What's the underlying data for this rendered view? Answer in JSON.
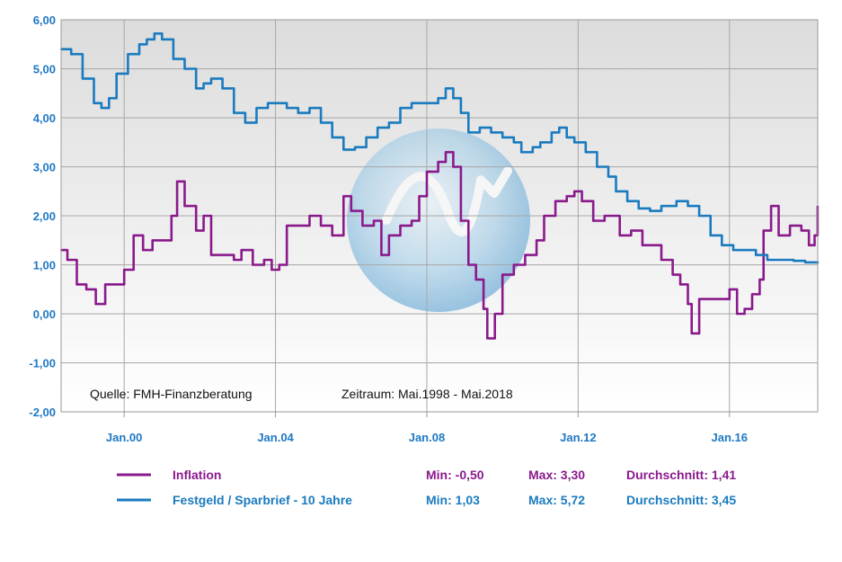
{
  "chart_data": {
    "type": "line",
    "title": "",
    "xlabel": "",
    "ylabel": "",
    "x_range": [
      "1998-05",
      "2018-05"
    ],
    "ylim": [
      -2.0,
      6.0
    ],
    "grid": true,
    "y_ticks": [
      "-2,00",
      "-1,00",
      "0,00",
      "1,00",
      "2,00",
      "3,00",
      "4,00",
      "5,00",
      "6,00"
    ],
    "x_ticks": [
      "Jan.00",
      "Jan.04",
      "Jan.08",
      "Jan.12",
      "Jan.16"
    ],
    "source_note": "Quelle: FMH-Finanzberatung",
    "period_note": "Zeitraum: Mai.1998 - Mai.2018",
    "series": [
      {
        "name": "Inflation",
        "color": "#8a1a8c",
        "min_label": "Min: -0,50",
        "max_label": "Max: 3,30",
        "avg_label": "Durchschnitt: 1,41",
        "points": [
          [
            1998.33,
            1.3
          ],
          [
            1998.5,
            1.1
          ],
          [
            1998.75,
            0.6
          ],
          [
            1999.0,
            0.5
          ],
          [
            1999.25,
            0.2
          ],
          [
            1999.5,
            0.6
          ],
          [
            1999.75,
            0.6
          ],
          [
            2000.0,
            0.9
          ],
          [
            2000.25,
            1.6
          ],
          [
            2000.5,
            1.3
          ],
          [
            2000.75,
            1.5
          ],
          [
            2001.0,
            1.5
          ],
          [
            2001.25,
            2.0
          ],
          [
            2001.4,
            2.7
          ],
          [
            2001.6,
            2.2
          ],
          [
            2001.9,
            1.7
          ],
          [
            2002.1,
            2.0
          ],
          [
            2002.3,
            1.2
          ],
          [
            2002.6,
            1.2
          ],
          [
            2002.9,
            1.1
          ],
          [
            2003.1,
            1.3
          ],
          [
            2003.4,
            1.0
          ],
          [
            2003.7,
            1.1
          ],
          [
            2003.9,
            0.9
          ],
          [
            2004.1,
            1.0
          ],
          [
            2004.3,
            1.8
          ],
          [
            2004.6,
            1.8
          ],
          [
            2004.9,
            2.0
          ],
          [
            2005.2,
            1.8
          ],
          [
            2005.5,
            1.6
          ],
          [
            2005.8,
            2.4
          ],
          [
            2006.0,
            2.1
          ],
          [
            2006.3,
            1.8
          ],
          [
            2006.6,
            1.9
          ],
          [
            2006.8,
            1.2
          ],
          [
            2007.0,
            1.6
          ],
          [
            2007.3,
            1.8
          ],
          [
            2007.6,
            1.9
          ],
          [
            2007.8,
            2.4
          ],
          [
            2008.0,
            2.9
          ],
          [
            2008.3,
            3.1
          ],
          [
            2008.5,
            3.3
          ],
          [
            2008.7,
            3.0
          ],
          [
            2008.9,
            1.9
          ],
          [
            2009.1,
            1.0
          ],
          [
            2009.3,
            0.7
          ],
          [
            2009.5,
            0.1
          ],
          [
            2009.6,
            -0.5
          ],
          [
            2009.8,
            0.0
          ],
          [
            2010.0,
            0.8
          ],
          [
            2010.3,
            1.0
          ],
          [
            2010.6,
            1.2
          ],
          [
            2010.9,
            1.5
          ],
          [
            2011.1,
            2.0
          ],
          [
            2011.4,
            2.3
          ],
          [
            2011.7,
            2.4
          ],
          [
            2011.9,
            2.5
          ],
          [
            2012.1,
            2.3
          ],
          [
            2012.4,
            1.9
          ],
          [
            2012.7,
            2.0
          ],
          [
            2012.9,
            2.0
          ],
          [
            2013.1,
            1.6
          ],
          [
            2013.4,
            1.7
          ],
          [
            2013.7,
            1.4
          ],
          [
            2013.9,
            1.4
          ],
          [
            2014.2,
            1.1
          ],
          [
            2014.5,
            0.8
          ],
          [
            2014.7,
            0.6
          ],
          [
            2014.9,
            0.2
          ],
          [
            2015.0,
            -0.4
          ],
          [
            2015.2,
            0.3
          ],
          [
            2015.5,
            0.3
          ],
          [
            2015.8,
            0.3
          ],
          [
            2016.0,
            0.5
          ],
          [
            2016.2,
            0.0
          ],
          [
            2016.4,
            0.1
          ],
          [
            2016.6,
            0.4
          ],
          [
            2016.8,
            0.7
          ],
          [
            2016.9,
            1.7
          ],
          [
            2017.1,
            2.2
          ],
          [
            2017.3,
            1.6
          ],
          [
            2017.6,
            1.8
          ],
          [
            2017.9,
            1.7
          ],
          [
            2018.1,
            1.4
          ],
          [
            2018.25,
            1.6
          ],
          [
            2018.33,
            2.2
          ]
        ]
      },
      {
        "name": "Festgeld / Sparbrief - 10 Jahre",
        "color": "#1a7bbf",
        "min_label": "Min: 1,03",
        "max_label": "Max: 5,72",
        "avg_label": "Durchschnitt: 3,45",
        "points": [
          [
            1998.33,
            5.4
          ],
          [
            1998.6,
            5.3
          ],
          [
            1998.9,
            4.8
          ],
          [
            1999.2,
            4.3
          ],
          [
            1999.4,
            4.2
          ],
          [
            1999.6,
            4.4
          ],
          [
            1999.8,
            4.9
          ],
          [
            2000.1,
            5.3
          ],
          [
            2000.4,
            5.5
          ],
          [
            2000.6,
            5.6
          ],
          [
            2000.8,
            5.72
          ],
          [
            2001.0,
            5.6
          ],
          [
            2001.3,
            5.2
          ],
          [
            2001.6,
            5.0
          ],
          [
            2001.9,
            4.6
          ],
          [
            2002.1,
            4.7
          ],
          [
            2002.3,
            4.8
          ],
          [
            2002.6,
            4.6
          ],
          [
            2002.9,
            4.1
          ],
          [
            2003.2,
            3.9
          ],
          [
            2003.5,
            4.2
          ],
          [
            2003.8,
            4.3
          ],
          [
            2004.0,
            4.3
          ],
          [
            2004.3,
            4.2
          ],
          [
            2004.6,
            4.1
          ],
          [
            2004.9,
            4.2
          ],
          [
            2005.2,
            3.9
          ],
          [
            2005.5,
            3.6
          ],
          [
            2005.8,
            3.35
          ],
          [
            2006.1,
            3.4
          ],
          [
            2006.4,
            3.6
          ],
          [
            2006.7,
            3.8
          ],
          [
            2007.0,
            3.9
          ],
          [
            2007.3,
            4.2
          ],
          [
            2007.6,
            4.3
          ],
          [
            2007.9,
            4.3
          ],
          [
            2008.1,
            4.3
          ],
          [
            2008.3,
            4.4
          ],
          [
            2008.5,
            4.6
          ],
          [
            2008.7,
            4.4
          ],
          [
            2008.9,
            4.1
          ],
          [
            2009.1,
            3.7
          ],
          [
            2009.4,
            3.8
          ],
          [
            2009.7,
            3.7
          ],
          [
            2010.0,
            3.6
          ],
          [
            2010.3,
            3.5
          ],
          [
            2010.5,
            3.3
          ],
          [
            2010.8,
            3.4
          ],
          [
            2011.0,
            3.5
          ],
          [
            2011.3,
            3.7
          ],
          [
            2011.5,
            3.8
          ],
          [
            2011.7,
            3.6
          ],
          [
            2011.9,
            3.5
          ],
          [
            2012.2,
            3.3
          ],
          [
            2012.5,
            3.0
          ],
          [
            2012.8,
            2.8
          ],
          [
            2013.0,
            2.5
          ],
          [
            2013.3,
            2.3
          ],
          [
            2013.6,
            2.15
          ],
          [
            2013.9,
            2.1
          ],
          [
            2014.2,
            2.2
          ],
          [
            2014.6,
            2.3
          ],
          [
            2014.9,
            2.2
          ],
          [
            2015.2,
            2.0
          ],
          [
            2015.5,
            1.6
          ],
          [
            2015.8,
            1.4
          ],
          [
            2016.1,
            1.3
          ],
          [
            2016.4,
            1.3
          ],
          [
            2016.7,
            1.2
          ],
          [
            2017.0,
            1.1
          ],
          [
            2017.4,
            1.1
          ],
          [
            2017.7,
            1.08
          ],
          [
            2018.0,
            1.05
          ],
          [
            2018.33,
            1.03
          ]
        ]
      }
    ]
  }
}
